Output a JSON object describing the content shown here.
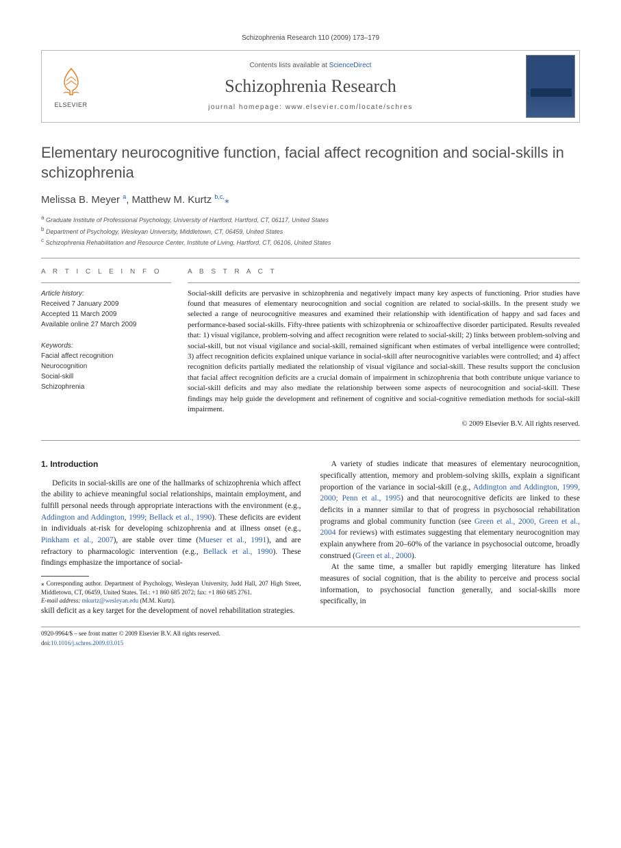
{
  "running_head": "Schizophrenia Research 110 (2009) 173–179",
  "header": {
    "contents_prefix": "Contents lists available at ",
    "contents_link": "ScienceDirect",
    "journal_name": "Schizophrenia Research",
    "homepage_prefix": "journal homepage: ",
    "homepage_url": "www.elsevier.com/locate/schres",
    "publisher_label": "ELSEVIER",
    "cover_text": "SCHIZOPHRENIA RESEARCH"
  },
  "title": "Elementary neurocognitive function, facial affect recognition and social-skills in schizophrenia",
  "authors_html": "Melissa B. Meyer <sup>a</sup>, Matthew M. Kurtz <sup>b,c,</sup><span class='corr-star'>⁎</span>",
  "affiliations": [
    {
      "sup": "a",
      "text": "Graduate Institute of Professional Psychology, University of Hartford, Hartford, CT, 06117, United States"
    },
    {
      "sup": "b",
      "text": "Department of Psychology, Wesleyan University, Middletown, CT, 06459, United States"
    },
    {
      "sup": "c",
      "text": "Schizophrenia Rehabilitation and Resource Center, Institute of Living, Hartford, CT, 06106, United States"
    }
  ],
  "info": {
    "label": "A R T I C L E   I N F O",
    "history_label": "Article history:",
    "received": "Received 7 January 2009",
    "accepted": "Accepted 11 March 2009",
    "online": "Available online 27 March 2009",
    "keywords_label": "Keywords:",
    "keywords": [
      "Facial affect recognition",
      "Neurocognition",
      "Social-skill",
      "Schizophrenia"
    ]
  },
  "abstract": {
    "label": "A B S T R A C T",
    "text": "Social-skill deficits are pervasive in schizophrenia and negatively impact many key aspects of functioning. Prior studies have found that measures of elementary neurocognition and social cognition are related to social-skills. In the present study we selected a range of neurocognitive measures and examined their relationship with identification of happy and sad faces and performance-based social-skills. Fifty-three patients with schizophrenia or schizoaffective disorder participated. Results revealed that: 1) visual vigilance, problem-solving and affect recognition were related to social-skill; 2) links between problem-solving and social-skill, but not visual vigilance and social-skill, remained significant when estimates of verbal intelligence were controlled; 3) affect recognition deficits explained unique variance in social-skill after neurocognitive variables were controlled; and 4) affect recognition deficits partially mediated the relationship of visual vigilance and social-skill. These results support the conclusion that facial affect recognition deficits are a crucial domain of impairment in schizophrenia that both contribute unique variance to social-skill deficits and may also mediate the relationship between some aspects of neurocognition and social-skill. These findings may help guide the development and refinement of cognitive and social-cognitive remediation methods for social-skill impairment.",
    "copyright": "© 2009 Elsevier B.V. All rights reserved."
  },
  "body": {
    "heading": "1. Introduction",
    "p1_pre": "Deficits in social-skills are one of the hallmarks of schizophrenia which affect the ability to achieve meaningful social relationships, maintain employment, and fulfill personal needs through appropriate interactions with the environment (e.g., ",
    "p1_c1": "Addington and Addington, 1999; Bellack et al., 1990",
    "p1_mid1": "). These deficits are evident in individuals at-risk for developing schizophrenia and at illness onset (e.g., ",
    "p1_c2": "Pinkham et al., 2007",
    "p1_mid2": "), are stable over time (",
    "p1_c3": "Mueser et al., 1991",
    "p1_mid3": "), and are refractory to pharmacologic intervention (e.g., ",
    "p1_c4": "Bellack et al., 1990",
    "p1_post": "). These findings emphasize the importance of social-",
    "p1b": "skill deficit as a key target for the development of novel rehabilitation strategies.",
    "p2_pre": "A variety of studies indicate that measures of elementary neurocognition, specifically attention, memory and problem-solving skills, explain a significant proportion of the variance in social-skill (e.g., ",
    "p2_c1": "Addington and Addington, 1999, 2000; Penn et al., 1995",
    "p2_mid1": ") and that neurocognitive deficits are linked to these deficits in a manner similar to that of progress in psychosocial rehabilitation programs and global community function (see ",
    "p2_c2": "Green et al., 2000, Green et al., 2004",
    "p2_mid2": " for reviews) with estimates suggesting that elementary neurocognition may explain anywhere from 20–60% of the variance in psychosocial outcome, broadly construed (",
    "p2_c3": "Green et al., 2000",
    "p2_post": ").",
    "p3": "At the same time, a smaller but rapidly emerging literature has linked measures of social cognition, that is the ability to perceive and process social information, to psychosocial function generally, and social-skills more specifically, in"
  },
  "footnotes": {
    "corr": "⁎ Corresponding author. Department of Psychology, Wesleyan University, Judd Hall, 207 High Street, Middletown, CT, 06459, United States. Tel.: +1 860 685 2072; fax: +1 860 685 2761.",
    "email_label": "E-mail address:",
    "email": "mkurtz@wesleyan.edu",
    "email_who": "(M.M. Kurtz)."
  },
  "bottom": {
    "front_matter": "0920-9964/$ – see front matter © 2009 Elsevier B.V. All rights reserved.",
    "doi_label": "doi:",
    "doi": "10.1016/j.schres.2009.03.015"
  }
}
